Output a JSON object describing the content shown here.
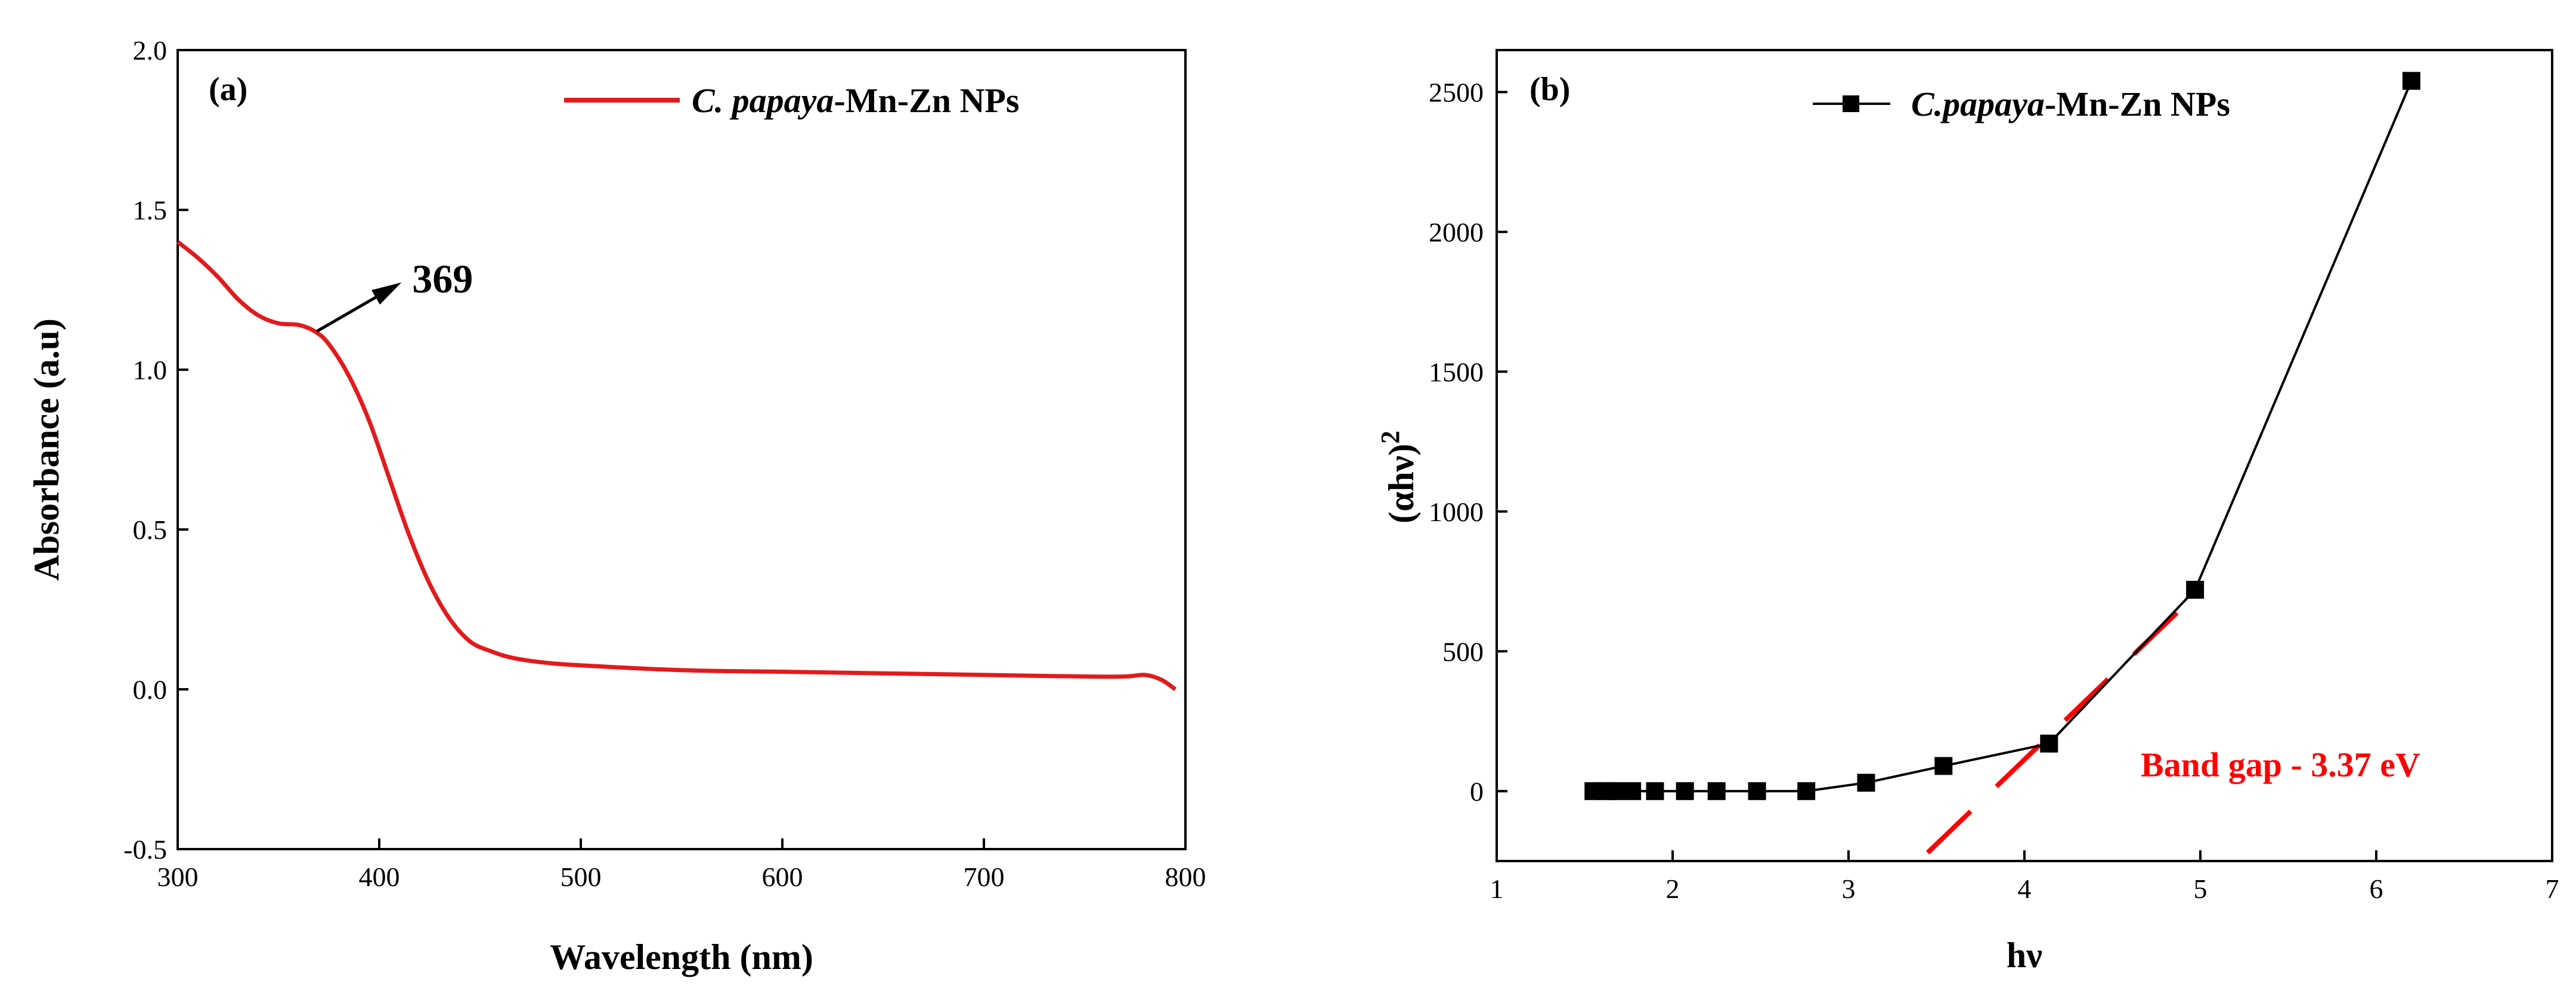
{
  "chart_data": [
    {
      "type": "line",
      "panel_label": "(a)",
      "xlabel": "Wavelength (nm)",
      "ylabel": "Absorbance (a.u)",
      "xlim": [
        300,
        800
      ],
      "ylim": [
        -0.5,
        2.0
      ],
      "xticks": [
        300,
        400,
        500,
        600,
        700,
        800
      ],
      "yticks": [
        -0.5,
        0.0,
        0.5,
        1.0,
        1.5,
        2.0
      ],
      "ytick_labels": [
        "-0.5",
        "0.0",
        "0.5",
        "1.0",
        "1.5",
        "2.0"
      ],
      "grid": false,
      "legend_position": "top-right",
      "series": [
        {
          "name_italic": "C. papaya",
          "name_rest": "-Mn-Zn NPs",
          "color": "#e31a1c",
          "x": [
            300,
            310,
            320,
            330,
            340,
            350,
            360,
            368,
            375,
            385,
            395,
            405,
            415,
            425,
            435,
            445,
            455,
            465,
            480,
            500,
            550,
            600,
            650,
            700,
            750,
            770,
            780,
            788,
            795
          ],
          "y": [
            1.4,
            1.35,
            1.29,
            1.22,
            1.17,
            1.145,
            1.14,
            1.12,
            1.08,
            0.98,
            0.84,
            0.66,
            0.48,
            0.33,
            0.22,
            0.15,
            0.12,
            0.1,
            0.085,
            0.075,
            0.06,
            0.055,
            0.05,
            0.045,
            0.04,
            0.04,
            0.045,
            0.03,
            0.0
          ]
        }
      ],
      "annotation": {
        "text": "369",
        "at_x": 369,
        "at_y": 1.12
      }
    },
    {
      "type": "line",
      "panel_label": "(b)",
      "xlabel": "hν",
      "ylabel_base": "(αhν)",
      "ylabel_sup": "2",
      "xlim": [
        1,
        7
      ],
      "ylim": [
        -250,
        2650
      ],
      "xticks": [
        1,
        2,
        3,
        4,
        5,
        6,
        7
      ],
      "yticks": [
        0,
        500,
        1000,
        1500,
        2000,
        2500
      ],
      "grid": false,
      "legend_position": "top-left",
      "series": [
        {
          "name_italic": "C.papaya",
          "name_rest": "-Mn-Zn NPs",
          "color": "#000000",
          "marker": "square",
          "x": [
            1.55,
            1.62,
            1.68,
            1.77,
            1.9,
            2.07,
            2.25,
            2.48,
            2.76,
            3.1,
            3.54,
            4.14,
            4.97,
            6.2
          ],
          "y": [
            0,
            0,
            0,
            0,
            0,
            0,
            0,
            0,
            0,
            30,
            90,
            170,
            720,
            2540
          ]
        }
      ],
      "tangent_line": {
        "x": [
          3.45,
          4.97
        ],
        "y": [
          -220,
          700
        ],
        "color": "#ff0000"
      },
      "annotation": {
        "text": "Band gap - 3.37 eV",
        "color": "#ff0000"
      }
    }
  ]
}
